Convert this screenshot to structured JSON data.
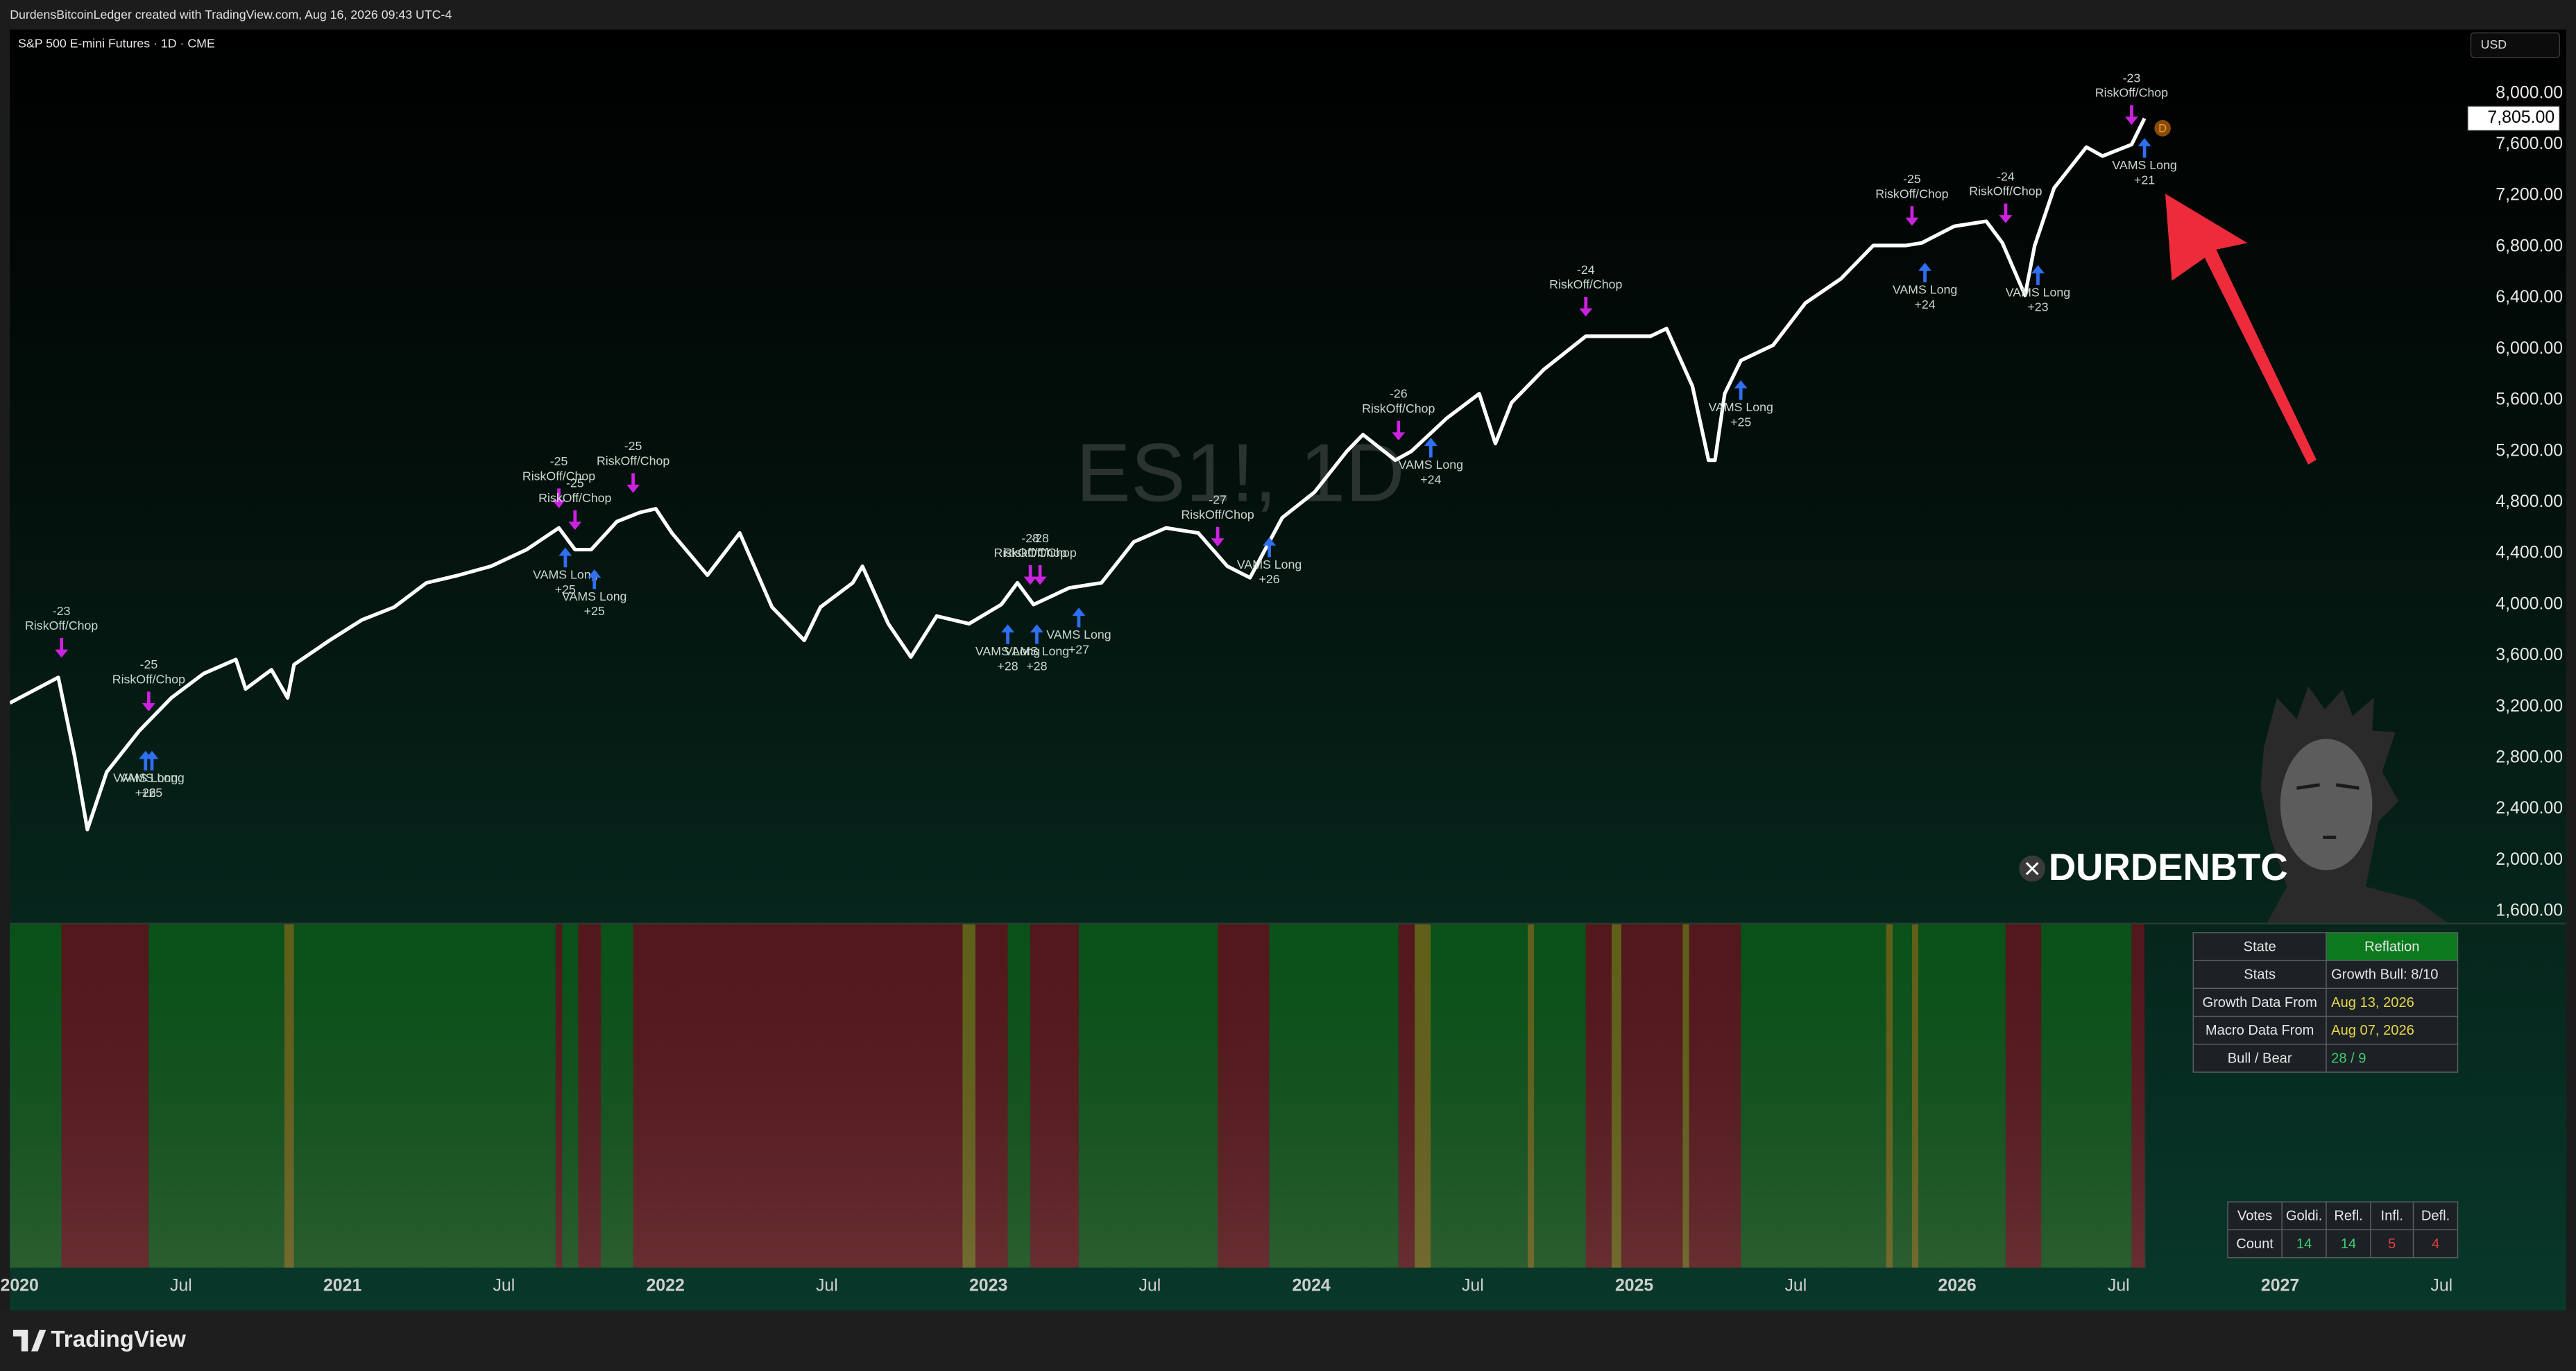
{
  "header": "DurdensBitcoinLedger created with TradingView.com, Aug 16, 2026 09:43 UTC-4",
  "symbol_title": "S&P 500 E-mini Futures · 1D · CME",
  "currency": "USD",
  "watermark": "ES1!, 1D",
  "brand": "DURDENBTC",
  "footer_logo": "TradingView",
  "chart_data": [
    {
      "type": "line",
      "x": [
        2019.97,
        2020.12,
        2020.17,
        2020.21,
        2020.27,
        2020.37,
        2020.47,
        2020.57,
        2020.67,
        2020.7,
        2020.78,
        2020.83,
        2020.85,
        2020.96,
        2021.06,
        2021.16,
        2021.26,
        2021.36,
        2021.46,
        2021.57,
        2021.67,
        2021.72,
        2021.77,
        2021.85,
        2021.92,
        2021.97,
        2022.02,
        2022.13,
        2022.23,
        2022.33,
        2022.43,
        2022.48,
        2022.58,
        2022.61,
        2022.69,
        2022.76,
        2022.84,
        2022.94,
        2023.04,
        2023.09,
        2023.14,
        2023.25,
        2023.35,
        2023.45,
        2023.55,
        2023.65,
        2023.74,
        2023.81,
        2023.91,
        2024.01,
        2024.11,
        2024.16,
        2024.26,
        2024.31,
        2024.42,
        2024.52,
        2024.57,
        2024.62,
        2024.72,
        2024.85,
        2024.95,
        2025.05,
        2025.1,
        2025.18,
        2025.23,
        2025.25,
        2025.28,
        2025.33,
        2025.43,
        2025.53,
        2025.64,
        2025.74,
        2025.84,
        2025.89,
        2025.99,
        2026.09,
        2026.14,
        2026.21,
        2026.24,
        2026.3,
        2026.4,
        2026.45,
        2026.54,
        2026.58
      ],
      "series": [
        {
          "color": "#ffffff",
          "values": [
            3230,
            3430,
            2820,
            2240,
            2690,
            3010,
            3270,
            3460,
            3570,
            3340,
            3490,
            3270,
            3530,
            3720,
            3880,
            3980,
            4170,
            4230,
            4300,
            4430,
            4600,
            4430,
            4430,
            4650,
            4720,
            4750,
            4560,
            4230,
            4560,
            3980,
            3720,
            3980,
            4170,
            4300,
            3850,
            3590,
            3910,
            3850,
            4000,
            4170,
            4000,
            4130,
            4170,
            4490,
            4600,
            4560,
            4300,
            4210,
            4680,
            4880,
            5200,
            5330,
            5130,
            5200,
            5460,
            5650,
            5260,
            5580,
            5840,
            6100,
            6100,
            6100,
            6160,
            5710,
            5130,
            5130,
            5650,
            5910,
            6030,
            6360,
            6550,
            6810,
            6810,
            6830,
            6960,
            7000,
            6830,
            6420,
            6810,
            7260,
            7580,
            7510,
            7600,
            7805
          ]
        }
      ],
      "xlim": [
        2019.97,
        2027.56
      ],
      "ylim": [
        1510,
        8500
      ],
      "xticks": [
        2020,
        {
          "value": 2020.5,
          "label": "Jul"
        },
        2021,
        {
          "value": 2021.5,
          "label": "Jul"
        },
        2022,
        {
          "value": 2022.5,
          "label": "Jul"
        },
        2023,
        {
          "value": 2023.5,
          "label": "Jul"
        },
        2024,
        {
          "value": 2024.5,
          "label": "Jul"
        },
        2025,
        {
          "value": 2025.5,
          "label": "Jul"
        },
        2026,
        {
          "value": 2026.5,
          "label": "Jul"
        },
        2027,
        {
          "value": 2027.5,
          "label": "Jul"
        }
      ],
      "yticks": [
        {
          "value": 1600,
          "label": "1,600.00"
        },
        {
          "value": 2000,
          "label": "2,000.00"
        },
        {
          "value": 2400,
          "label": "2,400.00"
        },
        {
          "value": 2800,
          "label": "2,800.00"
        },
        {
          "value": 3200,
          "label": "3,200.00"
        },
        {
          "value": 3600,
          "label": "3,600.00"
        },
        {
          "value": 4000,
          "label": "4,000.00"
        },
        {
          "value": 4400,
          "label": "4,400.00"
        },
        {
          "value": 4800,
          "label": "4,800.00"
        },
        {
          "value": 5200,
          "label": "5,200.00"
        },
        {
          "value": 5600,
          "label": "5,600.00"
        },
        {
          "value": 6000,
          "label": "6,000.00"
        },
        {
          "value": 6400,
          "label": "6,400.00"
        },
        {
          "value": 6800,
          "label": "6,800.00"
        },
        {
          "value": 7200,
          "label": "7,200.00"
        },
        {
          "value": 7600,
          "label": "7,600.00"
        },
        {
          "value": 8000,
          "label": "8,000.00"
        }
      ],
      "last_price": {
        "value": 7805,
        "label": "7,805.00"
      },
      "event_marker": "D",
      "riskoff_color": "#cc22e0",
      "vams_color": "#2f6ff2",
      "riskoff_signals": [
        {
          "x": 2020.13,
          "score": "-23",
          "text": "RiskOff/Chop"
        },
        {
          "x": 2020.4,
          "score": "-25",
          "text": "RiskOff/Chop"
        },
        {
          "x": 2021.67,
          "score": "-25",
          "text": "RiskOff/Chop"
        },
        {
          "x": 2021.72,
          "score": "-25",
          "text": "RiskOff/Chop"
        },
        {
          "x": 2021.9,
          "score": "-25",
          "text": "RiskOff/Chop"
        },
        {
          "x": 2023.13,
          "score": "-28",
          "text": "RiskOff/Chop"
        },
        {
          "x": 2023.16,
          "score": "-28",
          "text": "RiskOff/Chop"
        },
        {
          "x": 2023.71,
          "score": "-27",
          "text": "RiskOff/Chop"
        },
        {
          "x": 2024.27,
          "score": "-26",
          "text": "RiskOff/Chop"
        },
        {
          "x": 2024.85,
          "score": "-24",
          "text": "RiskOff/Chop"
        },
        {
          "x": 2025.86,
          "score": "-25",
          "text": "RiskOff/Chop"
        },
        {
          "x": 2026.15,
          "score": "-24",
          "text": "RiskOff/Chop"
        },
        {
          "x": 2026.54,
          "score": "-23",
          "text": "RiskOff/Chop"
        }
      ],
      "vams_signals": [
        {
          "x": 2020.39,
          "score": "+26",
          "text": "VAMS Long"
        },
        {
          "x": 2020.41,
          "score": "+25",
          "text": "VAMS Long"
        },
        {
          "x": 2021.69,
          "score": "+25",
          "text": "VAMS Long"
        },
        {
          "x": 2021.78,
          "score": "+25",
          "text": "VAMS Long"
        },
        {
          "x": 2023.06,
          "score": "+28",
          "text": "VAMS Long"
        },
        {
          "x": 2023.15,
          "score": "+28",
          "text": "VAMS Long"
        },
        {
          "x": 2023.28,
          "score": "+27",
          "text": "VAMS Long"
        },
        {
          "x": 2023.87,
          "score": "+26",
          "text": "VAMS Long"
        },
        {
          "x": 2024.37,
          "score": "+24",
          "text": "VAMS Long"
        },
        {
          "x": 2025.33,
          "score": "+25",
          "text": "VAMS Long"
        },
        {
          "x": 2025.9,
          "score": "+24",
          "text": "VAMS Long"
        },
        {
          "x": 2026.25,
          "score": "+23",
          "text": "VAMS Long"
        },
        {
          "x": 2026.58,
          "score": "+21",
          "text": "VAMS Long"
        }
      ]
    },
    {
      "type": "bands",
      "bins": [
        2019.97,
        2020.13,
        2020.4,
        2020.82,
        2020.85,
        2021.66,
        2021.68,
        2021.73,
        2021.8,
        2021.9,
        2022.92,
        2022.96,
        2023.06,
        2023.13,
        2023.28,
        2023.71,
        2023.87,
        2024.27,
        2024.32,
        2024.37,
        2024.67,
        2024.69,
        2024.85,
        2024.93,
        2024.96,
        2025.15,
        2025.17,
        2025.33,
        2025.78,
        2025.8,
        2025.86,
        2025.88,
        2026.15,
        2026.26,
        2026.54,
        2026.58
      ],
      "colors": [
        "#0b5a1c",
        "#5c1a1e",
        "#0b5a1c",
        "#6a6a1c",
        "#0b5a1c",
        "#5c1a1e",
        "#0b5a1c",
        "#5c1a1e",
        "#0b5a1c",
        "#5c1a1e",
        "#6a6a1c",
        "#5c1a1e",
        "#0b5a1c",
        "#5c1a1e",
        "#0b5a1c",
        "#5c1a1e",
        "#0b5a1c",
        "#5c1a1e",
        "#6a6a1c",
        "#0b5a1c",
        "#6a6a1c",
        "#0b5a1c",
        "#5c1a1e",
        "#6a6a1c",
        "#5c1a1e",
        "#6a6a1c",
        "#5c1a1e",
        "#0b5a1c",
        "#6a6a1c",
        "#0b5a1c",
        "#6a6a1c",
        "#0b5a1c",
        "#5c1a1e",
        "#0b5a1c",
        "#5c1a1e"
      ]
    }
  ],
  "state_table": {
    "rows": [
      [
        "State",
        "Reflation"
      ],
      [
        "Stats",
        "Growth Bull: 8/10"
      ],
      [
        "Growth Data From",
        "Aug 13, 2026"
      ],
      [
        "Macro Data From",
        "Aug 07, 2026"
      ],
      [
        "Bull / Bear",
        "28 / 9"
      ]
    ]
  },
  "votes_table": {
    "header": [
      "Votes",
      "Goldi.",
      "Refl.",
      "Infl.",
      "Defl."
    ],
    "row": [
      "Count",
      "14",
      "14",
      "5",
      "4"
    ]
  }
}
